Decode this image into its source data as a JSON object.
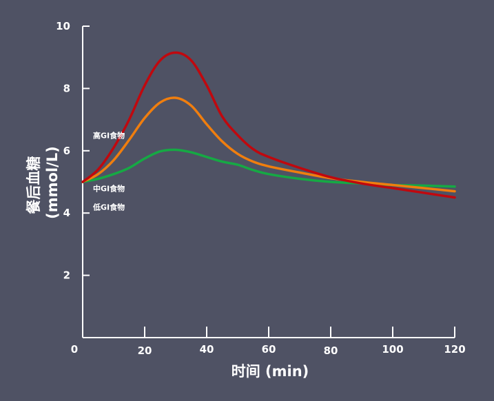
{
  "chart_data": {
    "type": "line",
    "title": "",
    "xlabel": "时间 (min)",
    "ylabel_lines": [
      "餐后血糖",
      "(mmol/L)"
    ],
    "xlim": [
      0,
      120
    ],
    "ylim": [
      0,
      10
    ],
    "x_ticks": [
      {
        "value": 0,
        "label": "0"
      },
      {
        "value": 20,
        "label": "20"
      },
      {
        "value": 40,
        "label": "40"
      },
      {
        "value": 60,
        "label": "60"
      },
      {
        "value": 80,
        "label": "80"
      },
      {
        "value": 100,
        "label": "100"
      },
      {
        "value": 120,
        "label": "120"
      }
    ],
    "y_ticks": [
      {
        "value": 2,
        "label": "2"
      },
      {
        "value": 4,
        "label": "4"
      },
      {
        "value": 6,
        "label": "6"
      },
      {
        "value": 8,
        "label": "8"
      },
      {
        "value": 10,
        "label": "10"
      }
    ],
    "grid": false,
    "series": [
      {
        "name": "高GI食物",
        "color": "#c0080e",
        "label_anchor": [
          2,
          6.4
        ],
        "x": [
          0,
          5,
          10,
          15,
          20,
          25,
          30,
          35,
          40,
          45,
          50,
          55,
          60,
          70,
          80,
          90,
          100,
          110,
          120
        ],
        "y": [
          5.0,
          5.4,
          6.1,
          7.0,
          8.1,
          8.9,
          9.15,
          8.9,
          8.1,
          7.1,
          6.5,
          6.05,
          5.8,
          5.45,
          5.15,
          4.95,
          4.8,
          4.65,
          4.5
        ]
      },
      {
        "name": "中GI食物",
        "color": "#f07e0e",
        "label_anchor": [
          2,
          4.7
        ],
        "x": [
          0,
          5,
          10,
          15,
          20,
          25,
          30,
          35,
          40,
          45,
          50,
          55,
          60,
          70,
          80,
          90,
          100,
          110,
          120
        ],
        "y": [
          5.0,
          5.25,
          5.7,
          6.35,
          7.05,
          7.55,
          7.7,
          7.45,
          6.85,
          6.3,
          5.9,
          5.65,
          5.5,
          5.3,
          5.12,
          5.0,
          4.9,
          4.8,
          4.7
        ]
      },
      {
        "name": "低GI食物",
        "color": "#16a944",
        "label_anchor": [
          2,
          4.1
        ],
        "x": [
          0,
          5,
          10,
          15,
          20,
          25,
          30,
          35,
          40,
          45,
          50,
          55,
          60,
          70,
          80,
          90,
          100,
          110,
          120
        ],
        "y": [
          5.0,
          5.1,
          5.25,
          5.45,
          5.75,
          5.98,
          6.03,
          5.95,
          5.8,
          5.65,
          5.55,
          5.38,
          5.25,
          5.1,
          5.0,
          4.95,
          4.9,
          4.88,
          4.85
        ]
      }
    ]
  }
}
